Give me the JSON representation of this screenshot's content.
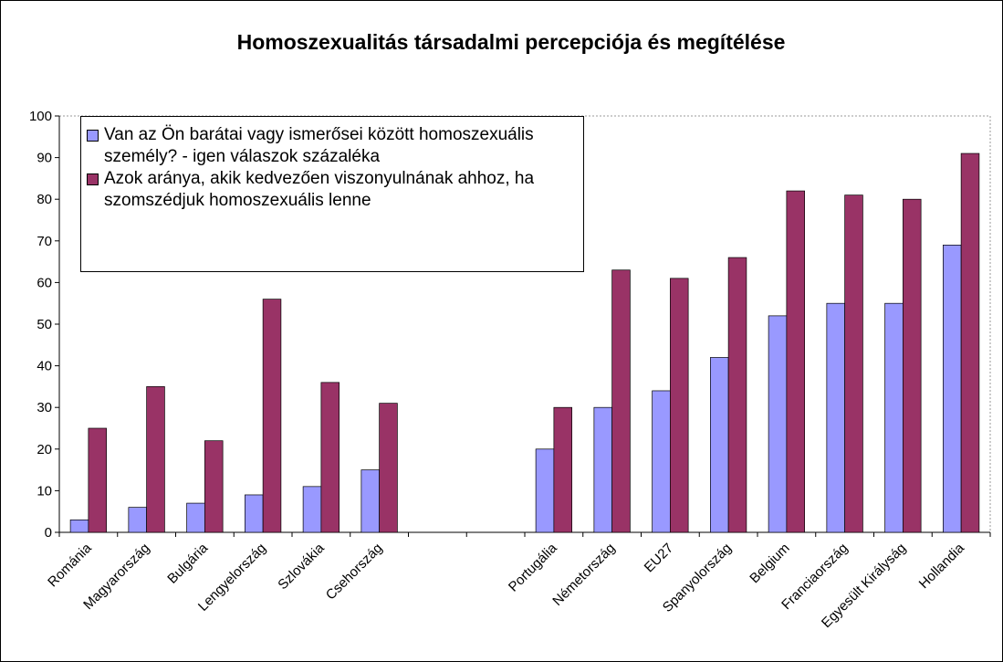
{
  "chart_data": {
    "type": "bar",
    "title": "Homoszexualitás társadalmi percepciója és megítélése",
    "categories": [
      "Románia",
      "Magyarország",
      "Bulgária",
      "Lengyelország",
      "Szlovákia",
      "Csehország",
      null,
      null,
      "Portugália",
      "Németország",
      "EU27",
      "Spanyolország",
      "Belgium",
      "Franciaország",
      "Egyesült Királyság",
      "Hollandia"
    ],
    "series": [
      {
        "name": "Van az Ön barátai vagy ismerősei között homoszexuális személy? -  igen válaszok százaléka",
        "color": "#9999ff",
        "values": [
          3,
          6,
          7,
          9,
          11,
          15,
          null,
          null,
          20,
          30,
          34,
          42,
          52,
          55,
          55,
          69
        ]
      },
      {
        "name": "Azok aránya, akik kedvezően viszonyulnának ahhoz, ha szomszédjuk homoszexuális lenne",
        "color": "#993366",
        "values": [
          25,
          35,
          22,
          56,
          36,
          31,
          null,
          null,
          30,
          63,
          61,
          66,
          82,
          81,
          80,
          91
        ]
      }
    ],
    "ylim": [
      0,
      100
    ],
    "yticks": [
      0,
      10,
      20,
      30,
      40,
      50,
      60,
      70,
      80,
      90,
      100
    ],
    "legend": "top-left"
  }
}
